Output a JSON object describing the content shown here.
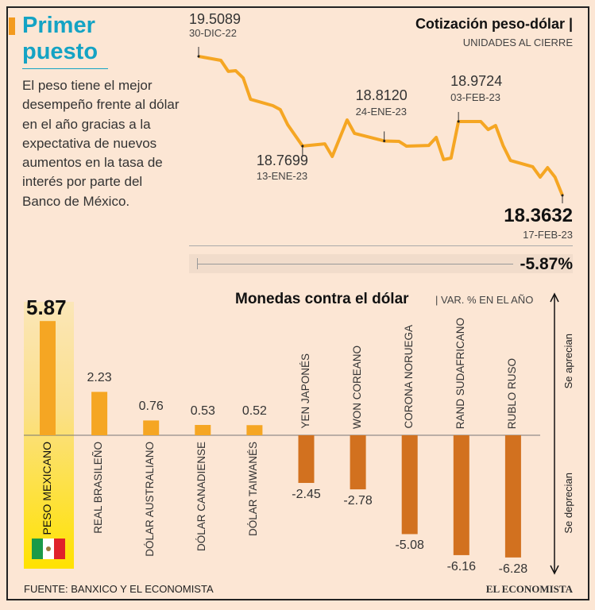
{
  "intro": {
    "title_line1": "Primer",
    "title_line2": "puesto",
    "description": "El peso tiene el mejor desempeño frente al dólar en el año gracias a la expectativa de nuevos aumentos en la tasa de interés por parte del Banco de México."
  },
  "chart_data": [
    {
      "type": "line",
      "title": "Cotización peso-dólar |",
      "subtitle": "UNIDADES AL CIERRE",
      "x_unit": "days since 30-DIC-22",
      "x": [
        0,
        3,
        4,
        5,
        6,
        7,
        10,
        11,
        12,
        14,
        17,
        18,
        20,
        21,
        25,
        27,
        28,
        31,
        32,
        33,
        34,
        35,
        38,
        39,
        40,
        41,
        42,
        45,
        46,
        47,
        48,
        49
      ],
      "values": [
        19.5089,
        19.476,
        19.385,
        19.391,
        19.332,
        19.155,
        19.103,
        19.07,
        18.946,
        18.7699,
        18.788,
        18.684,
        18.985,
        18.874,
        18.812,
        18.808,
        18.769,
        18.775,
        18.841,
        18.658,
        18.671,
        18.9724,
        18.972,
        18.906,
        18.939,
        18.775,
        18.651,
        18.599,
        18.514,
        18.592,
        18.514,
        18.3632
      ],
      "ylim": [
        18.3632,
        19.5089
      ],
      "annotations": [
        {
          "value": "19.5089",
          "date": "30-DIC-22",
          "x": 0
        },
        {
          "value": "18.7699",
          "date": "13-ENE-23",
          "x": 14
        },
        {
          "value": "18.8120",
          "date": "24-ENE-23",
          "x": 25
        },
        {
          "value": "18.9724",
          "date": "03-FEB-23",
          "x": 35
        },
        {
          "value": "18.3632",
          "date": "17-FEB-23",
          "x": 49
        }
      ],
      "change_label": "-5.87%",
      "change": -5.87,
      "color": "#f5a623"
    },
    {
      "type": "bar",
      "title": "Monedas contra el dólar",
      "subtitle": "| VAR. % EN EL AÑO",
      "categories": [
        "PESO MEXICANO",
        "REAL BRASILEÑO",
        "DÓLAR AUSTRALIANO",
        "DÓLAR CANADIENSE",
        "DÓLAR TAIWANÉS",
        "YEN JAPONÉS",
        "WON COREANO",
        "CORONA NORUEGA",
        "RAND SUDAFRICANO",
        "RUBLO RUSO"
      ],
      "values": [
        5.87,
        2.23,
        0.76,
        0.53,
        0.52,
        -2.45,
        -2.78,
        -5.08,
        -6.16,
        -6.28
      ],
      "labels": [
        "5.87",
        "2.23",
        "0.76",
        "0.53",
        "0.52",
        "-2.45",
        "-2.78",
        "-5.08",
        "-6.16",
        "-6.28"
      ],
      "positive_color": "#f5a623",
      "negative_color": "#d2711f",
      "axis_up": "Se aprecian",
      "axis_down": "Se deprecian"
    }
  ],
  "footer": {
    "source": "FUENTE: BANXICO Y EL ECONOMISTA",
    "brand": "EL ECONOMISTA"
  }
}
